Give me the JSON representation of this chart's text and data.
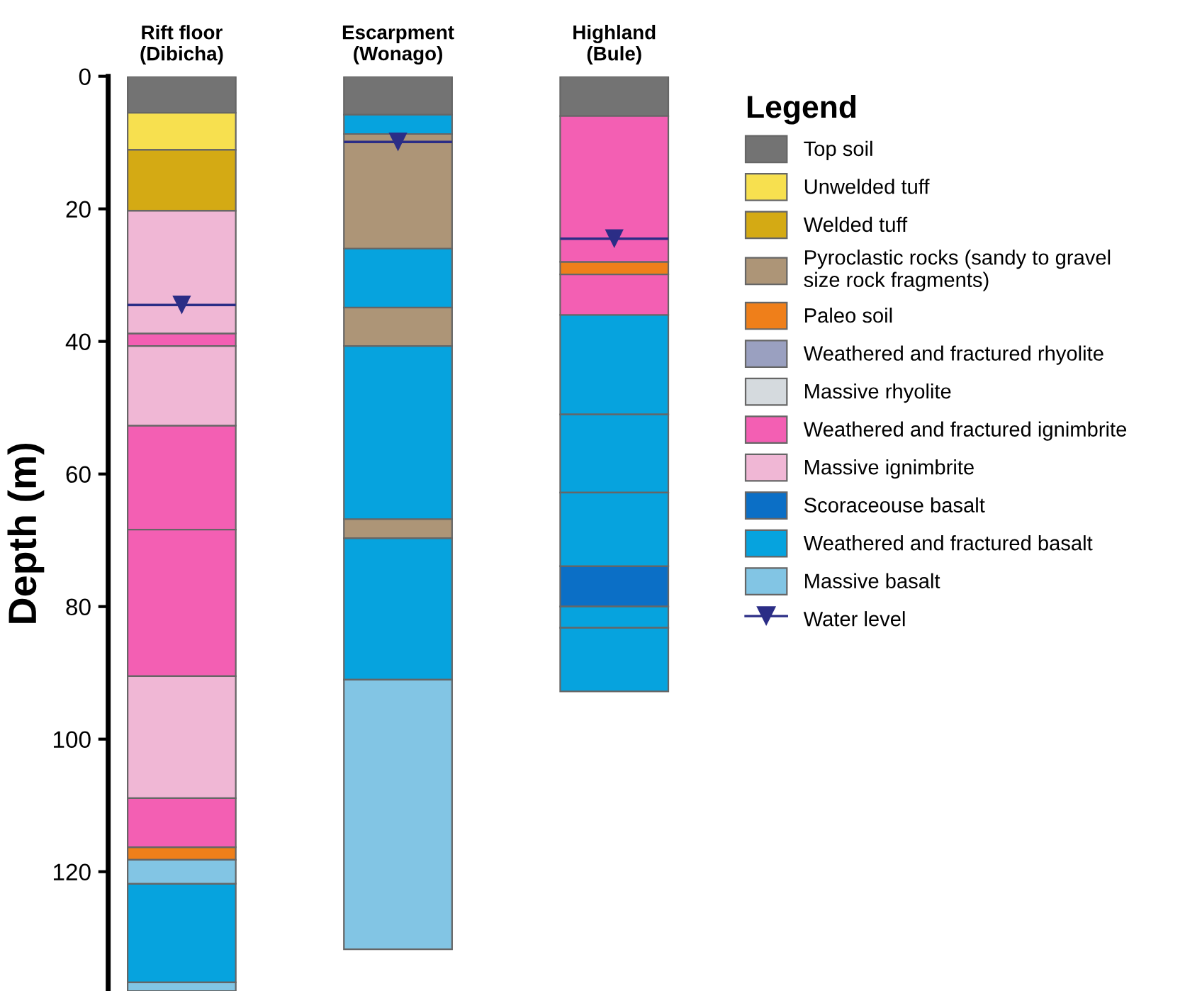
{
  "chart_data": {
    "type": "bar",
    "orientation": "vertical",
    "categories": [
      "Rift floor\n(Dibicha)",
      "Escarpment\n(Wonago)",
      "Highland\n(Bule)"
    ],
    "ylabel": "Depth (m)",
    "legend_title": "Legend",
    "legend": "right",
    "grid": false,
    "ylim": [
      138,
      0
    ],
    "yticks": [
      0,
      20,
      40,
      60,
      80,
      100,
      120
    ],
    "series": [
      {
        "name": "Top soil",
        "color": "#737373",
        "values": [
          5.5,
          5.8,
          6.0
        ],
        "base": [
          0,
          0,
          0
        ]
      },
      {
        "name": "Unwelded tuff",
        "color": "#f7e04f",
        "values": [
          5.6,
          null,
          null
        ],
        "base": [
          5.5,
          null,
          null
        ]
      },
      {
        "name": "Welded tuff",
        "color": "#d4aa14",
        "values": [
          9.2,
          null,
          null
        ],
        "base": [
          11.1,
          null,
          null
        ]
      },
      {
        "name": "Pyroclastic rocks (sandy to gravel\nsize rock fragments)",
        "color": "#ad9577",
        "values": [
          null,
          17.3,
          null
        ],
        "base": [
          null,
          8.7,
          null
        ]
      },
      {
        "name": "Paleo soil",
        "color": "#ef7f1a",
        "values": [
          1.9,
          null,
          1.9
        ],
        "base": [
          116.3,
          null,
          28.0
        ]
      },
      {
        "name": "Weathered and fractured rhyolite",
        "color": "#9aa0c0",
        "values": [
          null,
          null,
          null
        ],
        "base": [
          null,
          null,
          null
        ]
      },
      {
        "name": "Massive rhyolite",
        "color": "#d5dade",
        "values": [
          null,
          null,
          null
        ],
        "base": [
          null,
          null,
          null
        ]
      },
      {
        "name": "Weathered and fractured ignimbrite",
        "color": "#f35fb3",
        "values": [
          1.9,
          null,
          22.0
        ],
        "base": [
          38.8,
          null,
          6.0
        ]
      },
      {
        "name": "Massive ignimbrite",
        "color": "#f0b7d5",
        "values": [
          18.5,
          null,
          null
        ],
        "base": [
          20.3,
          null,
          null
        ]
      },
      {
        "name": "Scoraceouse basalt",
        "color": "#0b6fc6",
        "values": [
          null,
          null,
          6.1
        ],
        "base": [
          null,
          null,
          73.9
        ]
      },
      {
        "name": "Weathered and fractured basalt",
        "color": "#06a3de",
        "values": [
          14.9,
          2.9,
          15.0
        ],
        "base": [
          121.8,
          5.8,
          36.0
        ]
      },
      {
        "name": "Massive basalt",
        "color": "#82c5e4",
        "values": [
          3.6,
          40.7,
          null
        ],
        "base": [
          118.2,
          91.0,
          null
        ]
      },
      {
        "name": "Water level",
        "type": "scatter",
        "marker": "triangle",
        "color": "#2b2d86",
        "values": [
          34.5,
          9.9,
          24.5
        ]
      },
      {
        "color": "#ad9577",
        "values": [
          null,
          5.8,
          null
        ],
        "base": [
          null,
          34.9,
          null
        ]
      },
      {
        "color": "#ad9577",
        "values": [
          null,
          2.9,
          null
        ],
        "base": [
          null,
          66.8,
          null
        ]
      },
      {
        "color": "#f35fb3",
        "values": [
          15.7,
          null,
          6.1
        ],
        "base": [
          52.7,
          null,
          29.9
        ]
      },
      {
        "color": "#f35fb3",
        "values": [
          22.1,
          null,
          null
        ],
        "base": [
          68.4,
          null,
          null
        ]
      },
      {
        "color": "#f35fb3",
        "values": [
          7.4,
          null,
          null
        ],
        "base": [
          108.9,
          null,
          null
        ]
      },
      {
        "color": "#f0b7d5",
        "values": [
          12.0,
          null,
          null
        ],
        "base": [
          40.7,
          null,
          null
        ]
      },
      {
        "color": "#f0b7d5",
        "values": [
          18.4,
          null,
          null
        ],
        "base": [
          90.5,
          null,
          null
        ]
      },
      {
        "color": "#06a3de",
        "values": [
          null,
          8.9,
          11.8
        ],
        "base": [
          null,
          26.0,
          51.0
        ]
      },
      {
        "color": "#06a3de",
        "values": [
          null,
          26.1,
          11.1
        ],
        "base": [
          null,
          40.7,
          62.8
        ]
      },
      {
        "color": "#06a3de",
        "values": [
          null,
          21.3,
          3.2
        ],
        "base": [
          null,
          69.7,
          80.0
        ]
      },
      {
        "color": "#06a3de",
        "values": [
          null,
          null,
          9.6
        ],
        "base": [
          null,
          null,
          83.2
        ]
      },
      {
        "color": "#82c5e4",
        "values": [
          1.3,
          null,
          null
        ],
        "base": [
          136.7,
          null,
          null
        ]
      }
    ]
  }
}
